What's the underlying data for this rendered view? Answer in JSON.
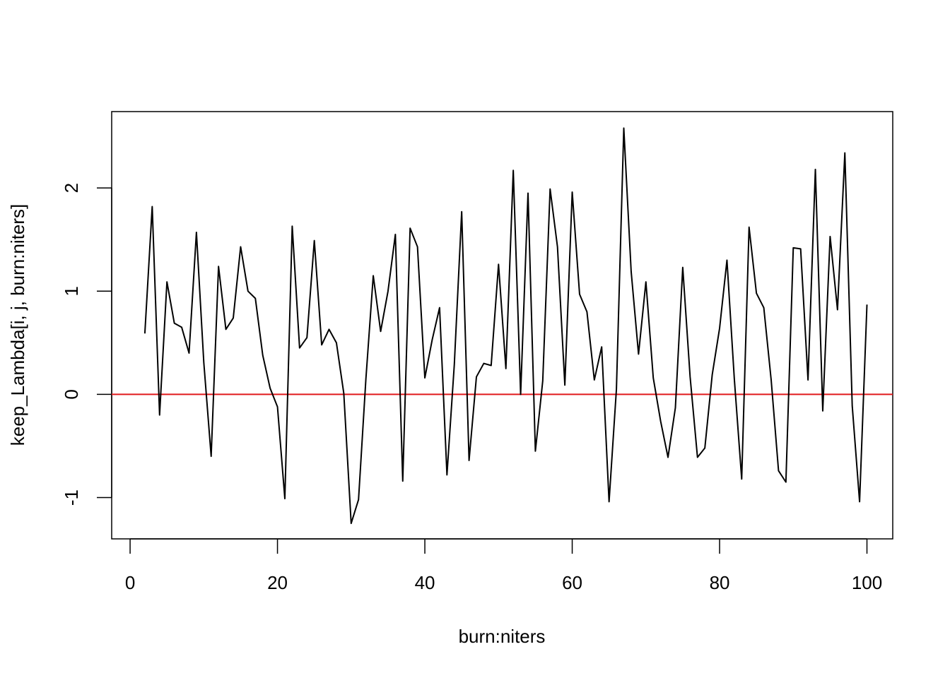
{
  "chart_data": {
    "type": "line",
    "title": "",
    "xlabel": "burn:niters",
    "ylabel": "keep_Lambda[i, j, burn:niters]",
    "xlim": [
      -2.5,
      103.5
    ],
    "ylim": [
      -1.4,
      2.74
    ],
    "x_ticks": [
      0,
      20,
      40,
      60,
      80,
      100
    ],
    "x_tick_labels": [
      "0",
      "20",
      "40",
      "60",
      "80",
      "100"
    ],
    "y_ticks": [
      -1,
      0,
      1,
      2
    ],
    "y_tick_labels": [
      "-1",
      "0",
      "1",
      "2"
    ],
    "grid": false,
    "legend": "none",
    "reference_line": {
      "y": 0,
      "color": "#e0191c"
    },
    "series": [
      {
        "color": "#000000",
        "x": [
          2,
          3,
          4,
          5,
          6,
          7,
          8,
          9,
          10,
          11,
          12,
          13,
          14,
          15,
          16,
          17,
          18,
          19,
          20,
          21,
          22,
          23,
          24,
          25,
          26,
          27,
          28,
          29,
          30,
          31,
          32,
          33,
          34,
          35,
          36,
          37,
          38,
          39,
          40,
          41,
          42,
          43,
          44,
          45,
          46,
          47,
          48,
          49,
          50,
          51,
          52,
          53,
          54,
          55,
          56,
          57,
          58,
          59,
          60,
          61,
          62,
          63,
          64,
          65,
          66,
          67,
          68,
          69,
          70,
          71,
          72,
          73,
          74,
          75,
          76,
          77,
          78,
          79,
          80,
          81,
          82,
          83,
          84,
          85,
          86,
          87,
          88,
          89,
          90,
          91,
          92,
          93,
          94,
          95,
          96,
          97,
          98,
          99,
          100
        ],
        "values": [
          0.59,
          1.82,
          -0.2,
          1.09,
          0.69,
          0.65,
          0.4,
          1.57,
          0.31,
          -0.6,
          1.24,
          0.63,
          0.74,
          1.43,
          1.0,
          0.93,
          0.38,
          0.06,
          -0.12,
          -1.01,
          1.63,
          0.45,
          0.55,
          1.49,
          0.48,
          0.63,
          0.5,
          0.01,
          -1.25,
          -1.02,
          0.15,
          1.15,
          0.61,
          1.0,
          1.55,
          -0.84,
          1.61,
          1.43,
          0.16,
          0.53,
          0.84,
          -0.78,
          0.29,
          1.77,
          -0.64,
          0.17,
          0.3,
          0.28,
          1.26,
          0.25,
          2.17,
          0.0,
          1.95,
          -0.55,
          0.13,
          1.99,
          1.43,
          0.09,
          1.96,
          0.97,
          0.8,
          0.14,
          0.46,
          -1.04,
          0.05,
          2.58,
          1.19,
          0.39,
          1.09,
          0.16,
          -0.26,
          -0.61,
          -0.13,
          1.23,
          0.17,
          -0.61,
          -0.52,
          0.19,
          0.64,
          1.3,
          0.15,
          -0.82,
          1.62,
          0.98,
          0.84,
          0.14,
          -0.74,
          -0.85,
          1.42,
          1.41,
          0.14,
          2.18,
          -0.16,
          1.53,
          0.82,
          2.34,
          -0.11,
          -1.04,
          0.87
        ]
      }
    ]
  }
}
